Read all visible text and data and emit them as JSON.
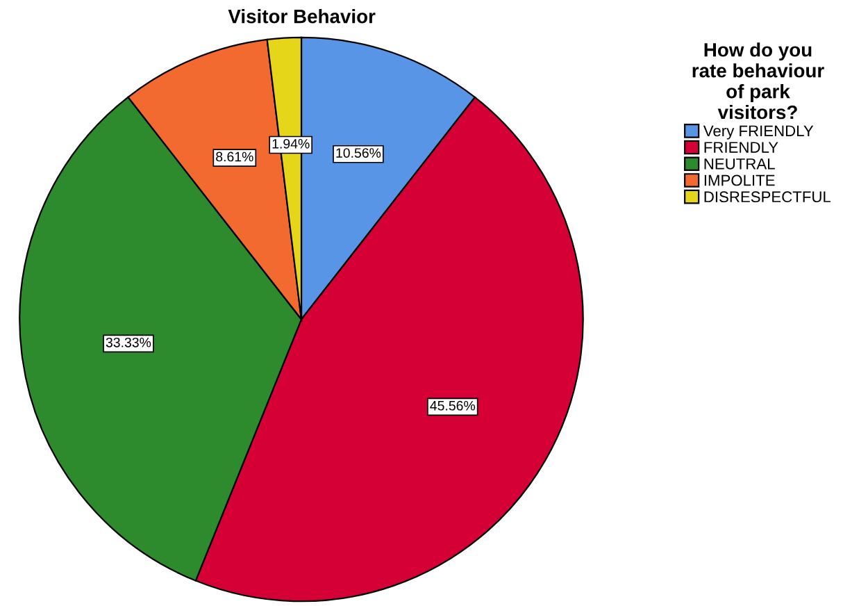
{
  "chart_data": {
    "type": "pie",
    "title": "Visitor Behavior",
    "legend_title": "How do you\nrate behaviour\nof park\nvisitors?",
    "categories": [
      "Very FRIENDLY",
      "FRIENDLY",
      "NEUTRAL",
      "IMPOLITE",
      "DISRESPECTFUL"
    ],
    "values": [
      10.56,
      45.56,
      33.33,
      8.61,
      1.94
    ],
    "colors": [
      "#5895e6",
      "#d40036",
      "#2d8a2d",
      "#f26a2f",
      "#e6d619"
    ],
    "value_labels": [
      "10.56%",
      "45.56%",
      "33.33%",
      "8.61%",
      "1.94%"
    ],
    "legend": "top right"
  }
}
